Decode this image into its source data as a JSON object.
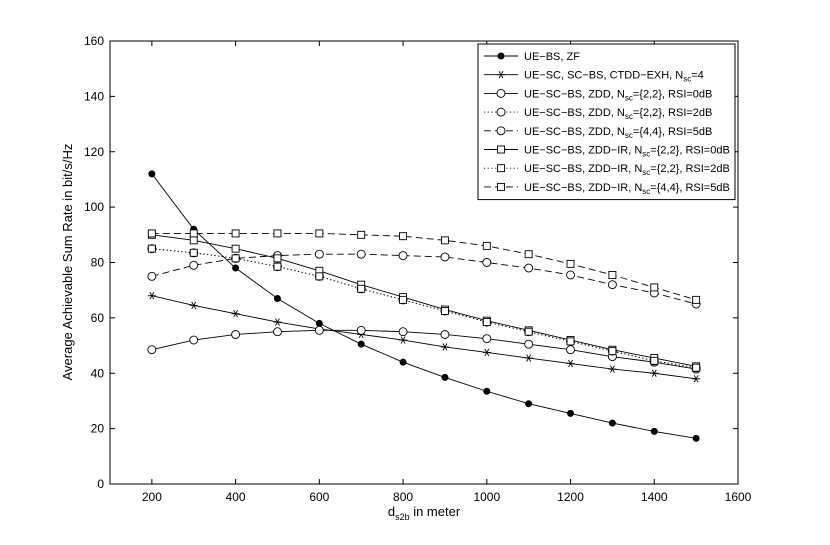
{
  "chart_data": {
    "type": "line",
    "title": "",
    "xlabel": {
      "main": "d",
      "sub": "s2b",
      "rest": " in meter"
    },
    "ylabel": "Average Achievable Sum Rate in bit/s/Hz",
    "xlim": [
      100,
      1600
    ],
    "ylim": [
      0,
      160
    ],
    "xticks": [
      "200",
      "400",
      "600",
      "800",
      "1000",
      "1200",
      "1400",
      "1600"
    ],
    "yticks": [
      "0",
      "20",
      "40",
      "60",
      "80",
      "100",
      "120",
      "140",
      "160"
    ],
    "grid": false,
    "legend_position": "top-right",
    "x": [
      200,
      300,
      400,
      500,
      600,
      700,
      800,
      900,
      1000,
      1100,
      1200,
      1300,
      1400,
      1500
    ],
    "series": [
      {
        "name": {
          "pre": "UE−BS, ZF",
          "sub": "",
          "post": ""
        },
        "marker": "filled-circle",
        "dash": "solid",
        "values": [
          112,
          92,
          78,
          67,
          58,
          50.5,
          44,
          38.5,
          33.5,
          29,
          25.5,
          22,
          19,
          16.5
        ]
      },
      {
        "name": {
          "pre": "UE−SC, SC−BS, CTDD−EXH, N",
          "sub": "sc",
          "post": "=4"
        },
        "marker": "asterisk",
        "dash": "solid",
        "values": [
          68,
          64.5,
          61.5,
          58.5,
          56,
          54,
          52,
          49.5,
          47.5,
          45.5,
          43.5,
          41.5,
          40,
          38
        ]
      },
      {
        "name": {
          "pre": "UE−SC−BS, ZDD, N",
          "sub": "sc",
          "post": "={2,2}, RSI=0dB"
        },
        "marker": "open-circle",
        "dash": "solid",
        "values": [
          48.5,
          52,
          54,
          55,
          55.5,
          55.5,
          55,
          54,
          52.5,
          50.5,
          48.5,
          46,
          44,
          41.5
        ]
      },
      {
        "name": {
          "pre": "UE−SC−BS, ZDD, N",
          "sub": "sc",
          "post": "={2,2}, RSI=2dB"
        },
        "marker": "open-circle",
        "dash": "dotted",
        "values": [
          85,
          83.5,
          81.5,
          78.5,
          75,
          70.5,
          66.5,
          62.5,
          58.5,
          55,
          51.5,
          48,
          44.5,
          42
        ]
      },
      {
        "name": {
          "pre": "UE−SC−BS, ZDD, N",
          "sub": "sc",
          "post": "={4,4}, RSI=5dB"
        },
        "marker": "open-circle",
        "dash": "dashed",
        "values": [
          75,
          79,
          81.5,
          82.5,
          83,
          83,
          82.5,
          82,
          80,
          78,
          75.5,
          72,
          69,
          65
        ]
      },
      {
        "name": {
          "pre": "UE−SC−BS, ZDD−IR, N",
          "sub": "sc",
          "post": "={2,2},  RSI=0dB"
        },
        "marker": "open-square",
        "dash": "solid",
        "values": [
          90,
          88,
          85,
          81.5,
          77,
          72,
          67.5,
          63,
          59,
          55.5,
          52,
          48.5,
          45.5,
          42.5
        ]
      },
      {
        "name": {
          "pre": "UE−SC−BS, ZDD−IR, N",
          "sub": "sc",
          "post": "={2,2}, RSI=2dB"
        },
        "marker": "open-square",
        "dash": "dotted",
        "values": [
          85,
          83.5,
          81.5,
          78.5,
          75,
          70.5,
          66.5,
          62.5,
          58.5,
          55,
          51.5,
          48,
          44.5,
          42
        ]
      },
      {
        "name": {
          "pre": "UE−SC−BS, ZDD−IR, N",
          "sub": "sc",
          "post": "={4,4}, RSI=5dB"
        },
        "marker": "open-square",
        "dash": "dashed",
        "values": [
          90.5,
          90.5,
          90.5,
          90.5,
          90.5,
          90,
          89.5,
          88,
          86,
          83,
          79.5,
          75.5,
          71,
          66.5
        ]
      }
    ]
  }
}
